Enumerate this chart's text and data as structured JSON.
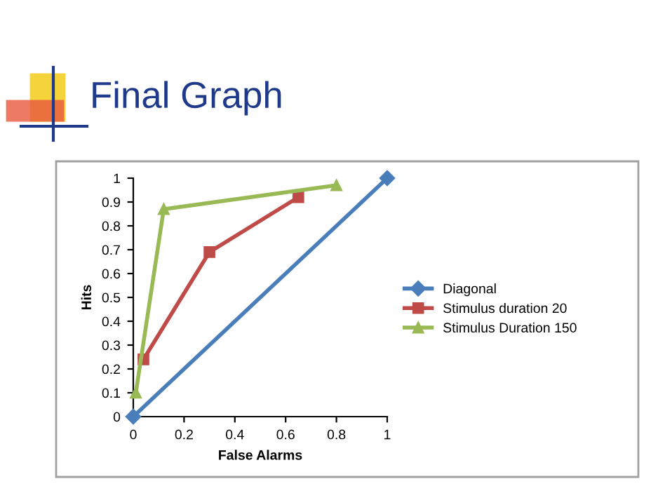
{
  "chart_data": {
    "type": "line",
    "title": "Final Graph",
    "xlabel": "False Alarms",
    "ylabel": "Hits",
    "xlim": [
      0,
      1
    ],
    "ylim": [
      0,
      1
    ],
    "xticks": [
      0,
      0.2,
      0.4,
      0.6,
      0.8,
      1
    ],
    "yticks": [
      0,
      0.1,
      0.2,
      0.3,
      0.4,
      0.5,
      0.6,
      0.7,
      0.8,
      0.9,
      1
    ],
    "grid": false,
    "legend": "right",
    "series": [
      {
        "name": "Diagonal",
        "color": "#4a7ebb",
        "marker": "diamond",
        "x": [
          0,
          1
        ],
        "values": [
          0,
          1
        ]
      },
      {
        "name": "Stimulus duration 20",
        "color": "#be4b48",
        "marker": "square",
        "x": [
          0.04,
          0.3,
          0.65
        ],
        "values": [
          0.24,
          0.69,
          0.92
        ]
      },
      {
        "name": "Stimulus Duration 150",
        "color": "#98b954",
        "marker": "triangle",
        "x": [
          0.01,
          0.12,
          0.8
        ],
        "values": [
          0.1,
          0.87,
          0.97
        ]
      }
    ]
  }
}
